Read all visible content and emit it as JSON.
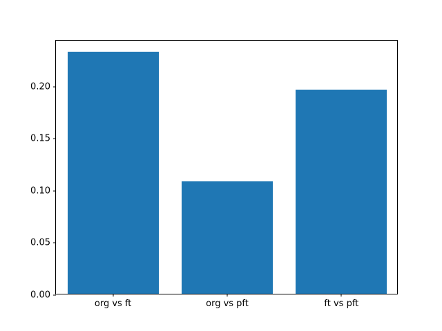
{
  "chart_data": {
    "type": "bar",
    "categories": [
      "org vs ft",
      "org vs pft",
      "ft vs pft"
    ],
    "values": [
      0.232,
      0.108,
      0.196
    ],
    "title": "",
    "xlabel": "",
    "ylabel": "",
    "ylim": [
      0,
      0.244
    ],
    "yticks": [
      0.0,
      0.05,
      0.1,
      0.15,
      0.2
    ],
    "ytick_format_decimals": 2,
    "bar_color": "#1f77b4",
    "bar_width_fraction": 0.8,
    "grid": false,
    "legend": "none",
    "background_color": "#ffffff",
    "axis_color": "#000000"
  }
}
